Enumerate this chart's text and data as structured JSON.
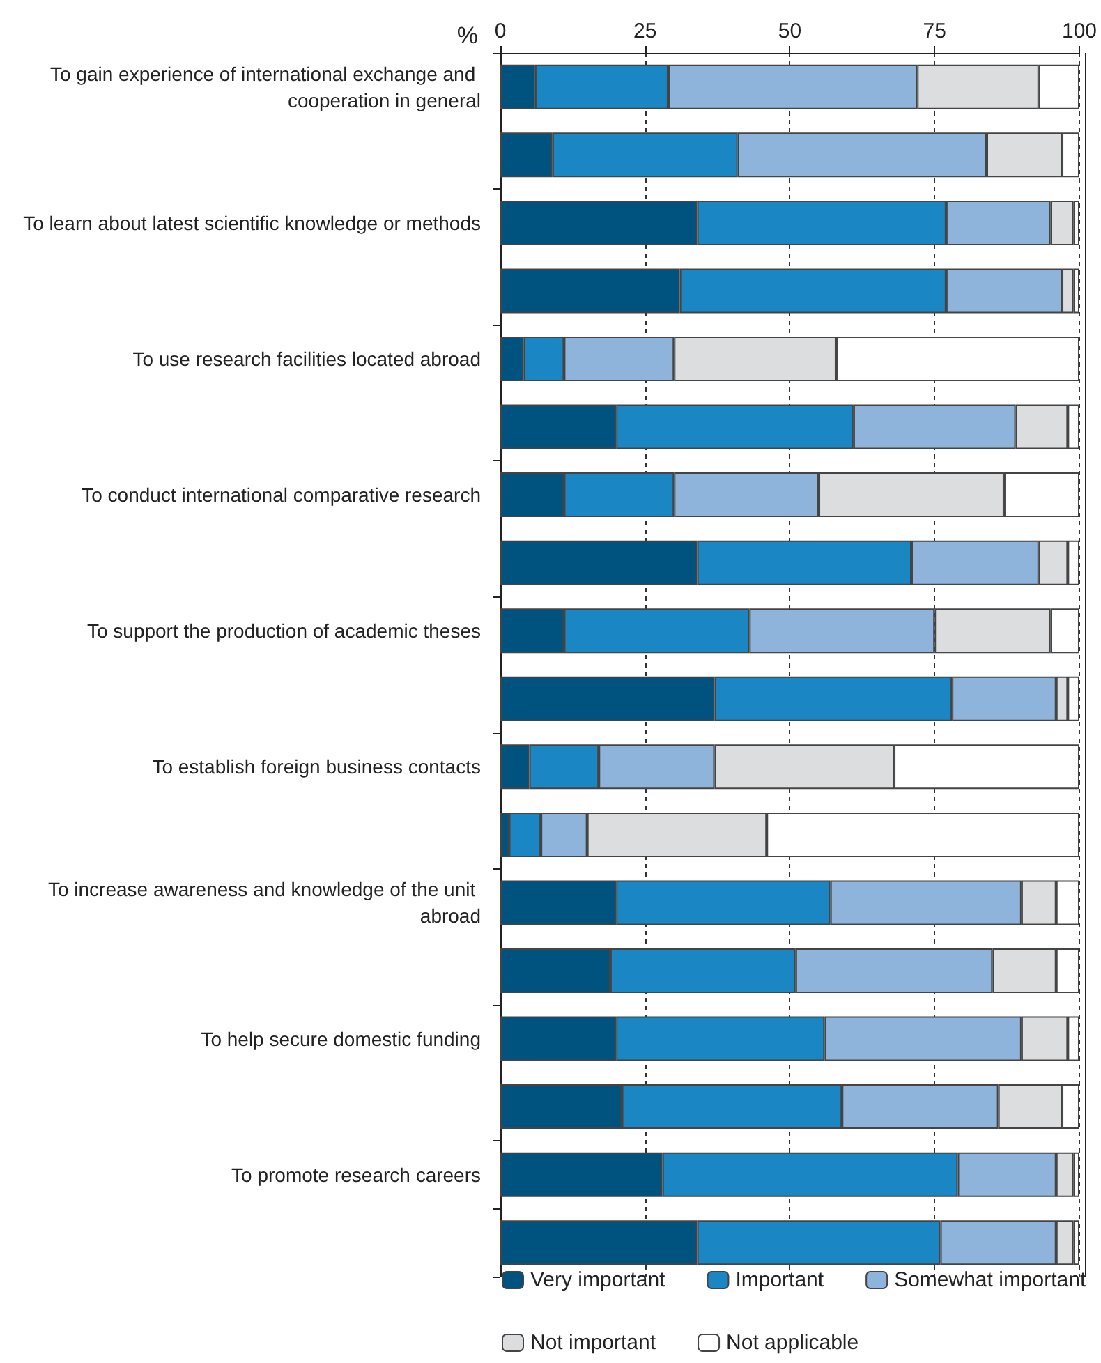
{
  "chart_data": {
    "type": "bar",
    "orientation": "horizontal",
    "stacked": true,
    "xlabel": "%",
    "categories": [
      "To gain experience of international exchange and cooperation in general",
      null,
      "To learn about latest scientific knowledge or methods",
      null,
      "To use research facilities located abroad",
      null,
      "To conduct international comparative research",
      null,
      "To support the production of academic theses",
      null,
      "To establish foreign business contacts",
      null,
      "To increase awareness and knowledge of the unit abroad",
      null,
      "To help secure domestic funding",
      null,
      "To promote research careers",
      null
    ],
    "series": [
      {
        "name": "Very important",
        "color": "#00527f",
        "values": [
          6,
          9,
          34,
          31,
          4,
          20,
          11,
          34,
          11,
          37,
          5,
          1.5,
          20,
          19,
          20,
          21,
          28,
          34
        ]
      },
      {
        "name": "Important",
        "color": "#1a86c3",
        "values": [
          23,
          32,
          43,
          46,
          7,
          41,
          19,
          37,
          32,
          41,
          12,
          5.5,
          37,
          32,
          36,
          38,
          51,
          42
        ]
      },
      {
        "name": "Somewhat important",
        "color": "#8fb4dc",
        "values": [
          43,
          43,
          18,
          20,
          19,
          28,
          25,
          22,
          32,
          18,
          20,
          8,
          33,
          34,
          34,
          27,
          17,
          20
        ]
      },
      {
        "name": "Not important",
        "color": "#dcdddf",
        "values": [
          21,
          13,
          4,
          2,
          28,
          9,
          32,
          5,
          20,
          2,
          31,
          31,
          6,
          11,
          8,
          11,
          3,
          3
        ]
      },
      {
        "name": "Not applicable",
        "color": "#ffffff",
        "values": [
          7,
          3,
          1,
          1,
          42,
          2,
          13,
          2,
          5,
          2,
          32,
          54,
          4,
          4,
          2,
          3,
          1,
          1
        ]
      }
    ],
    "xlim": [
      0,
      100
    ],
    "xticks": [
      0,
      25,
      50,
      75,
      100
    ],
    "grid": "x",
    "legend": "bottom"
  }
}
